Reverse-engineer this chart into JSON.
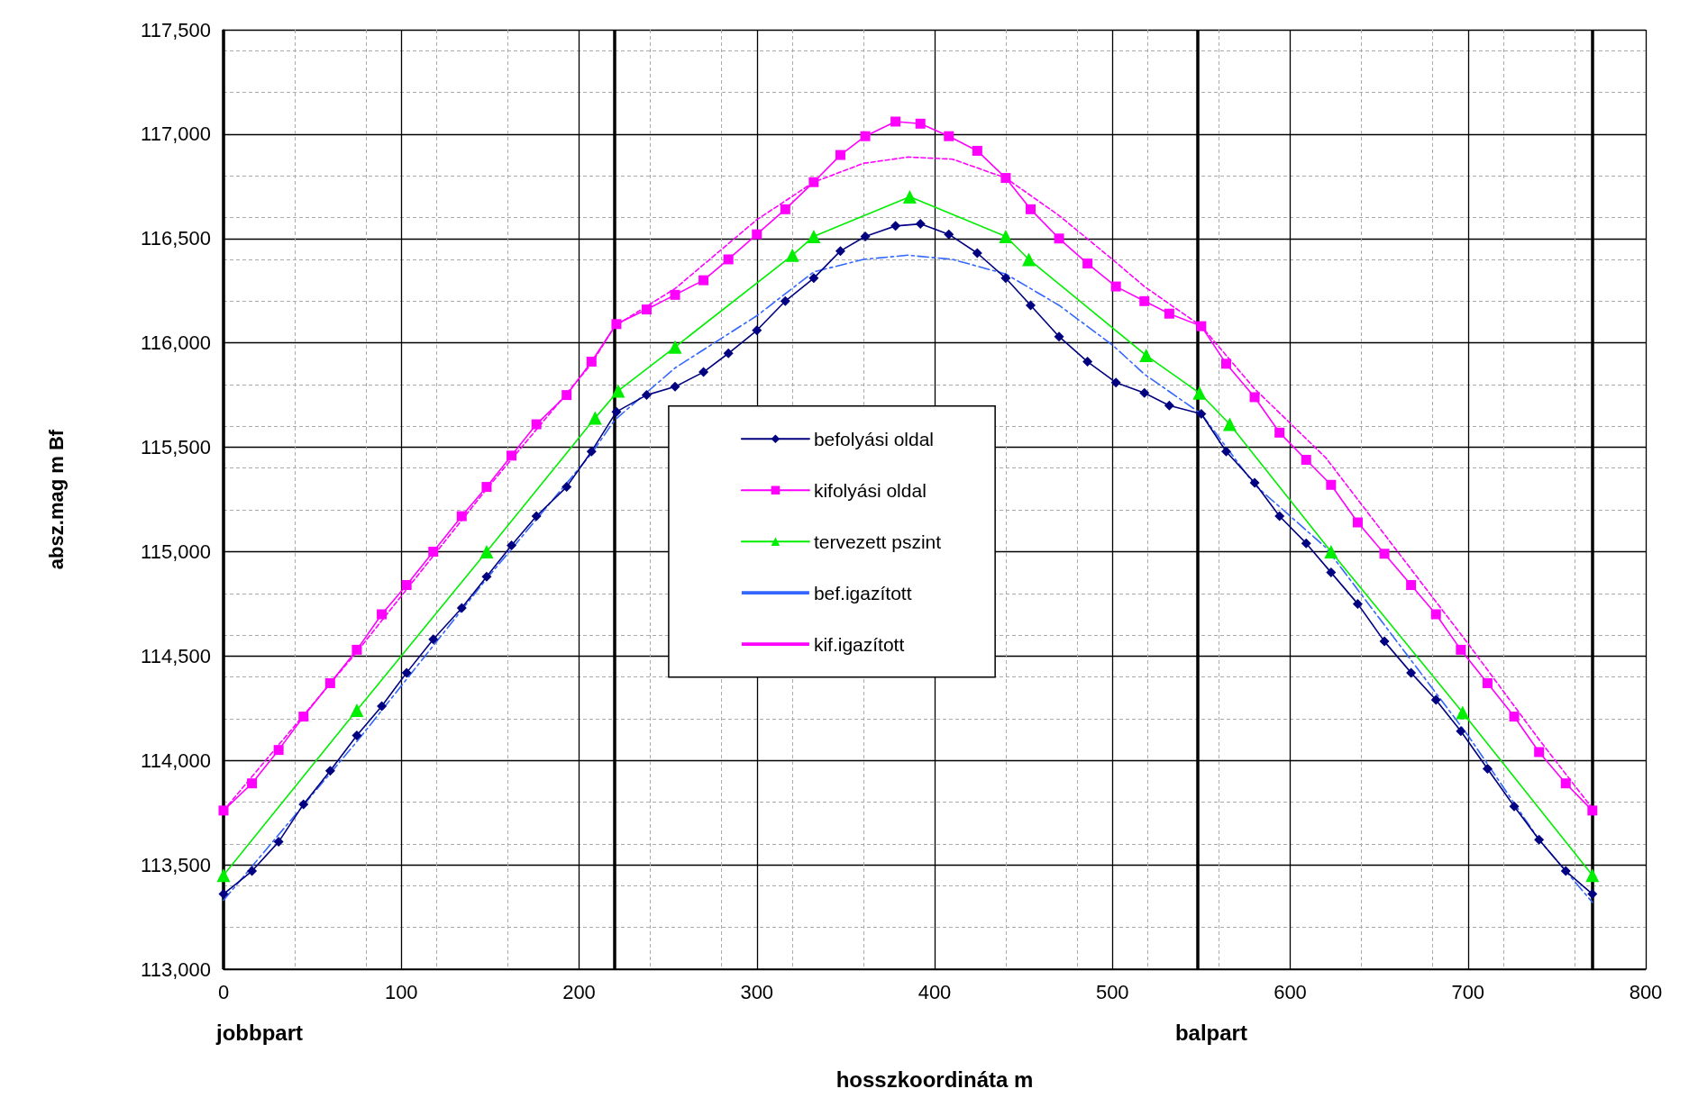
{
  "chart_data": {
    "type": "line",
    "ylabel": "absz.mag m Bf",
    "xlabel": "hosszkoordináta m",
    "xlim": [
      0,
      800
    ],
    "xticks": [
      0,
      100,
      200,
      300,
      400,
      500,
      600,
      700,
      800
    ],
    "ylim": [
      113000,
      117500
    ],
    "yticks": [
      {
        "value": 113000,
        "label": "113,000"
      },
      {
        "value": 113500,
        "label": "113,500"
      },
      {
        "value": 114000,
        "label": "114,000"
      },
      {
        "value": 114500,
        "label": "114,500"
      },
      {
        "value": 115000,
        "label": "115,000"
      },
      {
        "value": 115500,
        "label": "115,500"
      },
      {
        "value": 116000,
        "label": "116,000"
      },
      {
        "value": 116500,
        "label": "116,500"
      },
      {
        "value": 117000,
        "label": "117,000"
      },
      {
        "value": 117500,
        "label": "117,500"
      }
    ],
    "grid": true,
    "legend": "center",
    "ref_lines": [
      {
        "axis": "x",
        "value": 0,
        "label": "jobbpart"
      },
      {
        "axis": "x",
        "value": 220,
        "label": null
      },
      {
        "axis": "x",
        "value": 548,
        "label": "balpart"
      },
      {
        "axis": "x",
        "value": 770,
        "label": null
      }
    ],
    "series": [
      {
        "name": "befolyási oldal",
        "color": "#000080",
        "marker": "diamond",
        "line_style": "solid",
        "x": [
          0,
          16,
          31,
          45,
          60,
          75,
          89,
          103,
          118,
          134,
          148,
          162,
          176,
          193,
          207,
          221,
          238,
          254,
          270,
          284,
          300,
          316,
          332,
          347,
          361,
          378,
          392,
          408,
          424,
          440,
          454,
          470,
          486,
          502,
          518,
          532,
          550,
          564,
          580,
          594,
          609,
          623,
          638,
          653,
          668,
          682,
          696,
          711,
          726,
          740,
          755,
          770
        ],
        "values": [
          113360,
          113470,
          113610,
          113790,
          113950,
          114120,
          114260,
          114420,
          114580,
          114730,
          114880,
          115030,
          115170,
          115310,
          115480,
          115670,
          115750,
          115790,
          115860,
          115950,
          116060,
          116200,
          116310,
          116440,
          116510,
          116560,
          116570,
          116520,
          116430,
          116310,
          116180,
          116030,
          115910,
          115810,
          115760,
          115700,
          115660,
          115480,
          115330,
          115170,
          115040,
          114900,
          114750,
          114570,
          114420,
          114290,
          114140,
          113960,
          113780,
          113620,
          113470,
          113360
        ]
      },
      {
        "name": "kifolyási oldal",
        "color": "#ff00ff",
        "marker": "square",
        "line_style": "solid",
        "x": [
          0,
          16,
          31,
          45,
          60,
          75,
          89,
          103,
          118,
          134,
          148,
          162,
          176,
          193,
          207,
          221,
          238,
          254,
          270,
          284,
          300,
          316,
          332,
          347,
          361,
          378,
          392,
          408,
          424,
          440,
          454,
          470,
          486,
          502,
          518,
          532,
          550,
          564,
          580,
          594,
          609,
          623,
          638,
          653,
          668,
          682,
          696,
          711,
          726,
          740,
          755,
          770
        ],
        "values": [
          113760,
          113890,
          114050,
          114210,
          114370,
          114530,
          114700,
          114840,
          115000,
          115170,
          115310,
          115460,
          115610,
          115750,
          115910,
          116090,
          116160,
          116230,
          116300,
          116400,
          116520,
          116640,
          116770,
          116900,
          116990,
          117060,
          117050,
          116990,
          116920,
          116790,
          116640,
          116500,
          116380,
          116270,
          116200,
          116140,
          116080,
          115900,
          115740,
          115570,
          115440,
          115320,
          115140,
          114990,
          114840,
          114700,
          114530,
          114370,
          114210,
          114040,
          113890,
          113760
        ]
      },
      {
        "name": "tervezett pszint",
        "color": "#00ee00",
        "marker": "triangle",
        "line_style": "solid",
        "x": [
          0,
          75,
          148,
          209,
          222,
          254,
          320,
          332,
          386,
          440,
          453,
          519,
          549,
          566,
          623,
          697,
          770
        ],
        "values": [
          113450,
          114240,
          115000,
          115640,
          115770,
          115980,
          116420,
          116510,
          116700,
          116510,
          116400,
          115940,
          115760,
          115610,
          115000,
          114230,
          113450
        ]
      },
      {
        "name": "bef.igazított",
        "color": "#3366ff",
        "marker": "none",
        "line_style": "dashed",
        "x": [
          0,
          75,
          148,
          207,
          220,
          254,
          300,
          332,
          360,
          385,
          410,
          440,
          470,
          500,
          518,
          550,
          580,
          620,
          700,
          740,
          770
        ],
        "values": [
          113330,
          114090,
          114870,
          115470,
          115630,
          115880,
          116130,
          116340,
          116400,
          116420,
          116400,
          116330,
          116180,
          115990,
          115850,
          115660,
          115320,
          115020,
          114120,
          113620,
          113320
        ]
      },
      {
        "name": "kif.igazított",
        "color": "#ff00ff",
        "marker": "none",
        "line_style": "dotted",
        "x": [
          0,
          75,
          148,
          207,
          220,
          254,
          300,
          332,
          360,
          385,
          410,
          440,
          470,
          500,
          518,
          550,
          580,
          620,
          700,
          740,
          770
        ],
        "values": [
          113760,
          114520,
          115300,
          115900,
          116080,
          116260,
          116590,
          116770,
          116860,
          116890,
          116880,
          116790,
          116610,
          116400,
          116270,
          116080,
          115780,
          115450,
          114560,
          114100,
          113770
        ]
      }
    ]
  }
}
